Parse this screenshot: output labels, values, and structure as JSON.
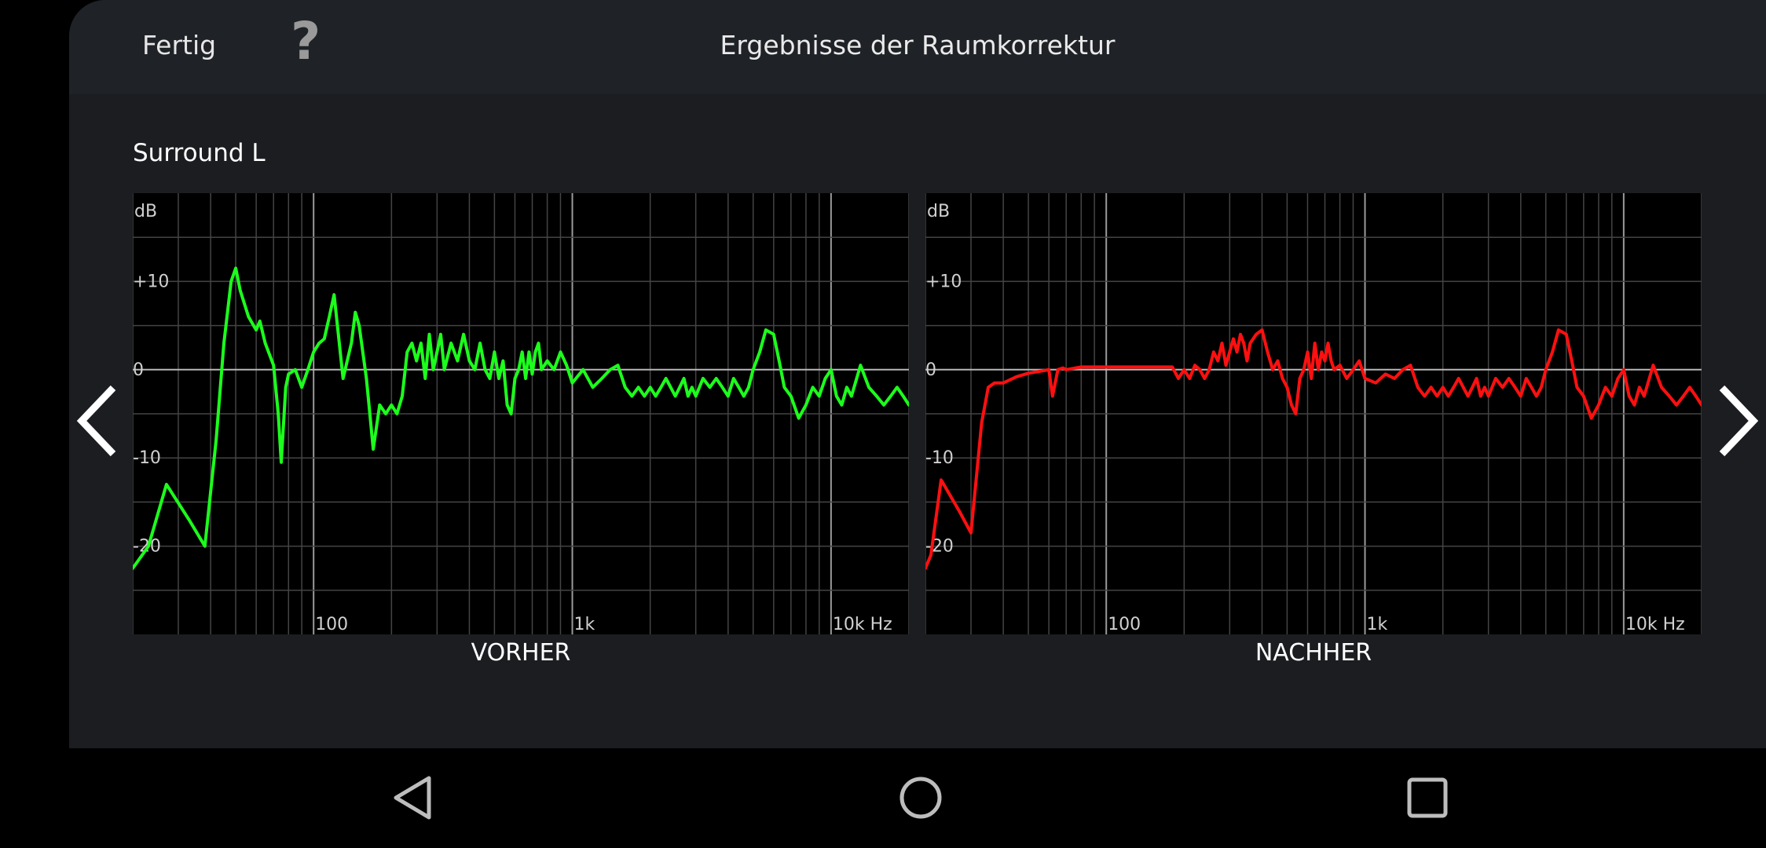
{
  "header": {
    "done_label": "Fertig",
    "help_label": "?",
    "title": "Ergebnisse der Raumkorrektur"
  },
  "speaker": "Surround L",
  "colors": {
    "before_curve": "#1cff1c",
    "after_curve": "#ff1010",
    "grid": "#4a4a4a",
    "background": "#000000"
  },
  "icons": {
    "prev": "chevron-left-icon",
    "next": "chevron-right-icon",
    "back": "triangle-back-icon",
    "home": "circle-home-icon",
    "recent": "square-recent-icon"
  },
  "chart_data": [
    {
      "type": "line",
      "title": "VORHER",
      "ylabel": "dB",
      "xlabel": "",
      "x_scale": "log",
      "xlim": [
        20,
        20000
      ],
      "ylim": [
        -30,
        20
      ],
      "x_ticks": [
        {
          "v": 100,
          "label": "100"
        },
        {
          "v": 1000,
          "label": "1k"
        },
        {
          "v": 10000,
          "label": "10k Hz"
        }
      ],
      "y_ticks": [
        {
          "v": 10,
          "label": "+10"
        },
        {
          "v": 0,
          "label": "0"
        },
        {
          "v": -10,
          "label": "-10"
        },
        {
          "v": -20,
          "label": "-20"
        }
      ],
      "series": [
        {
          "x": [
            20,
            23,
            27,
            33,
            38,
            42,
            45,
            48,
            50,
            52,
            56,
            60,
            62,
            65,
            70,
            73,
            75,
            78,
            80,
            85,
            90,
            95,
            100,
            105,
            110,
            115,
            120,
            130,
            140,
            145,
            150,
            160,
            165,
            170,
            180,
            190,
            200,
            210,
            220,
            230,
            240,
            250,
            260,
            270,
            280,
            290,
            300,
            310,
            320,
            340,
            360,
            380,
            400,
            420,
            440,
            460,
            480,
            500,
            520,
            540,
            560,
            580,
            600,
            620,
            640,
            660,
            680,
            700,
            720,
            740,
            760,
            800,
            850,
            900,
            950,
            1000,
            1100,
            1200,
            1300,
            1400,
            1500,
            1600,
            1700,
            1800,
            1900,
            2000,
            2100,
            2200,
            2300,
            2400,
            2500,
            2600,
            2700,
            2800,
            2900,
            3000,
            3200,
            3400,
            3600,
            3800,
            4000,
            4200,
            4400,
            4600,
            4800,
            5000,
            5300,
            5600,
            6000,
            6300,
            6600,
            7000,
            7500,
            8000,
            8500,
            9000,
            9500,
            10000,
            10500,
            11000,
            11500,
            12000,
            13000,
            14000,
            15000,
            16000,
            17000,
            18000,
            19000,
            20000
          ],
          "y": [
            -22.5,
            -20,
            -13,
            -17,
            -20,
            -8,
            3,
            10,
            11.5,
            9,
            6,
            4.5,
            5.5,
            3,
            0.5,
            -5,
            -10.5,
            -2,
            -0.5,
            0,
            -2,
            0,
            2,
            3,
            3.5,
            6,
            8.5,
            -1,
            3,
            6.5,
            5,
            -1,
            -5,
            -9,
            -4,
            -5,
            -4,
            -5,
            -3,
            2,
            3,
            1,
            3,
            -1,
            4,
            0,
            2,
            4,
            0,
            3,
            1,
            4,
            1,
            0,
            3,
            0,
            -1,
            2,
            -1,
            1,
            -4,
            -5,
            -1,
            0,
            2,
            -1,
            2,
            -0.5,
            2,
            3,
            0,
            1,
            0,
            2,
            0.5,
            -1.5,
            0,
            -2,
            -1,
            0,
            0.5,
            -2,
            -3,
            -2,
            -3,
            -2,
            -3,
            -2,
            -1,
            -2,
            -3,
            -2,
            -1,
            -3,
            -2,
            -3,
            -1,
            -2,
            -1,
            -2,
            -3,
            -1,
            -2,
            -3,
            -2,
            0,
            2,
            4.5,
            4,
            1,
            -2,
            -3,
            -5.5,
            -4,
            -2,
            -3,
            -1,
            0,
            -3,
            -4,
            -2,
            -3,
            0.5,
            -2,
            -3,
            -4,
            -3,
            -2,
            -3,
            -4
          ]
        }
      ]
    },
    {
      "type": "line",
      "title": "NACHHER",
      "ylabel": "dB",
      "xlabel": "",
      "x_scale": "log",
      "xlim": [
        20,
        20000
      ],
      "ylim": [
        -30,
        20
      ],
      "x_ticks": [
        {
          "v": 100,
          "label": "100"
        },
        {
          "v": 1000,
          "label": "1k"
        },
        {
          "v": 10000,
          "label": "10k Hz"
        }
      ],
      "y_ticks": [
        {
          "v": 10,
          "label": "+10"
        },
        {
          "v": 0,
          "label": "0"
        },
        {
          "v": -10,
          "label": "-10"
        },
        {
          "v": -20,
          "label": "-20"
        }
      ],
      "series": [
        {
          "x": [
            20,
            21,
            23,
            27,
            30,
            33,
            35,
            37,
            40,
            45,
            50,
            55,
            60,
            62,
            65,
            68,
            70,
            80,
            90,
            100,
            120,
            150,
            180,
            190,
            200,
            210,
            220,
            230,
            240,
            250,
            260,
            270,
            280,
            290,
            300,
            310,
            320,
            330,
            340,
            350,
            360,
            380,
            400,
            420,
            440,
            460,
            480,
            500,
            520,
            540,
            560,
            580,
            600,
            620,
            640,
            660,
            680,
            700,
            720,
            740,
            760,
            800,
            850,
            900,
            950,
            1000,
            1100,
            1200,
            1300,
            1400,
            1500,
            1600,
            1700,
            1800,
            1900,
            2000,
            2100,
            2200,
            2300,
            2400,
            2500,
            2600,
            2700,
            2800,
            2900,
            3000,
            3200,
            3400,
            3600,
            3800,
            4000,
            4200,
            4400,
            4600,
            4800,
            5000,
            5300,
            5600,
            6000,
            6300,
            6600,
            7000,
            7500,
            8000,
            8500,
            9000,
            9500,
            10000,
            10500,
            11000,
            11500,
            12000,
            13000,
            14000,
            15000,
            16000,
            17000,
            18000,
            19000,
            20000
          ],
          "y": [
            -22.5,
            -21,
            -12.5,
            -16,
            -18.5,
            -6,
            -2,
            -1.5,
            -1.5,
            -0.8,
            -0.4,
            -0.2,
            0,
            -3,
            0,
            0.2,
            0,
            0.3,
            0.3,
            0.3,
            0.3,
            0.3,
            0.3,
            -1,
            0,
            -1,
            0.5,
            0,
            -1,
            0,
            2,
            1,
            3,
            0.5,
            2,
            3.5,
            2,
            4,
            3,
            1,
            3,
            4,
            4.5,
            2,
            0,
            1,
            -1,
            -2,
            -4,
            -5,
            -1,
            0,
            2,
            -1,
            3,
            0,
            2,
            1,
            3,
            1,
            0,
            0.5,
            -1,
            0,
            1,
            -1,
            -1.5,
            -0.5,
            -1,
            0,
            0.5,
            -2,
            -3,
            -2,
            -3,
            -2,
            -3,
            -2,
            -1,
            -2,
            -3,
            -2,
            -1,
            -3,
            -2,
            -3,
            -1,
            -2,
            -1,
            -2,
            -3,
            -1,
            -2,
            -3,
            -2,
            0,
            2,
            4.5,
            4,
            1,
            -2,
            -3,
            -5.5,
            -4,
            -2,
            -3,
            -1,
            0,
            -3,
            -4,
            -2,
            -3,
            0.5,
            -2,
            -3,
            -4,
            -3,
            -2,
            -3,
            -4
          ]
        }
      ]
    }
  ]
}
